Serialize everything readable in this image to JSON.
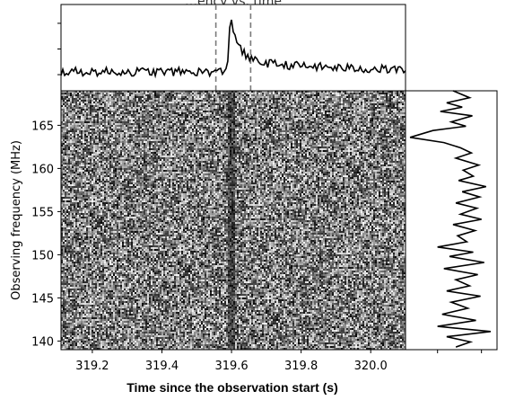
{
  "chart_data": [
    {
      "type": "line",
      "panel": "top-profile",
      "title": "…ency vs. time",
      "x_range": [
        319.11,
        320.1
      ],
      "y_range": [
        0,
        1
      ],
      "y_tick_labels": [
        "",
        "",
        ""
      ],
      "markers_dashed": [
        319.555,
        319.655
      ],
      "marker_color": "#7a7a7a",
      "baseline": 0.22,
      "noise_amplitude": 0.05,
      "pulse": {
        "peak_x": 319.597,
        "peak_y": 0.97,
        "rise_start": 319.588,
        "decay_scale": 0.02,
        "tail_level": 0.36,
        "tail_decay": 0.28
      },
      "line_color": "#000000"
    },
    {
      "type": "heatmap",
      "panel": "dynamic-spectrum",
      "colormap": "gray",
      "x_range": [
        319.11,
        320.1
      ],
      "y_range": [
        139,
        169
      ],
      "x_ticks": [
        319.2,
        319.4,
        319.6,
        319.8,
        320.0
      ],
      "x_tick_labels": [
        "319.2",
        "319.4",
        "319.6",
        "319.8",
        "320.0"
      ],
      "y_ticks": [
        140,
        145,
        150,
        155,
        160,
        165
      ],
      "y_tick_labels": [
        "140",
        "145",
        "150",
        "155",
        "160",
        "165"
      ],
      "xlabel": "Time since the observation start (s)",
      "ylabel": "Observing frequency (MHz)",
      "burst_time": 319.597,
      "grid": false
    },
    {
      "type": "line",
      "panel": "right-spectrum",
      "orientation": "vertical",
      "x_range": [
        0,
        1
      ],
      "y_range": [
        139,
        169
      ],
      "x_tick_labels": [
        "",
        ""
      ],
      "line_color": "#000000",
      "samples": [
        [
          0.52,
          169.0
        ],
        [
          0.7,
          168.2
        ],
        [
          0.45,
          167.6
        ],
        [
          0.62,
          167.1
        ],
        [
          0.38,
          166.6
        ],
        [
          0.73,
          166.1
        ],
        [
          0.5,
          165.4
        ],
        [
          0.66,
          164.9
        ],
        [
          0.3,
          164.4
        ],
        [
          0.05,
          163.6
        ],
        [
          0.42,
          163.0
        ],
        [
          0.6,
          162.4
        ],
        [
          0.72,
          161.8
        ],
        [
          0.55,
          161.2
        ],
        [
          0.8,
          160.4
        ],
        [
          0.63,
          159.8
        ],
        [
          0.74,
          159.1
        ],
        [
          0.58,
          158.6
        ],
        [
          0.88,
          157.9
        ],
        [
          0.62,
          157.3
        ],
        [
          0.81,
          156.7
        ],
        [
          0.55,
          156.0
        ],
        [
          0.78,
          155.4
        ],
        [
          0.6,
          154.7
        ],
        [
          0.83,
          154.1
        ],
        [
          0.52,
          153.5
        ],
        [
          0.76,
          152.8
        ],
        [
          0.57,
          152.2
        ],
        [
          0.67,
          151.5
        ],
        [
          0.35,
          150.9
        ],
        [
          0.74,
          150.3
        ],
        [
          0.48,
          149.8
        ],
        [
          0.86,
          149.1
        ],
        [
          0.42,
          148.4
        ],
        [
          0.79,
          147.7
        ],
        [
          0.55,
          147.1
        ],
        [
          0.7,
          146.4
        ],
        [
          0.45,
          145.8
        ],
        [
          0.82,
          145.2
        ],
        [
          0.5,
          144.5
        ],
        [
          0.68,
          143.8
        ],
        [
          0.4,
          143.1
        ],
        [
          0.77,
          142.4
        ],
        [
          0.35,
          141.7
        ],
        [
          0.93,
          141.1
        ],
        [
          0.45,
          140.5
        ],
        [
          0.71,
          139.9
        ],
        [
          0.55,
          139.3
        ]
      ]
    }
  ]
}
